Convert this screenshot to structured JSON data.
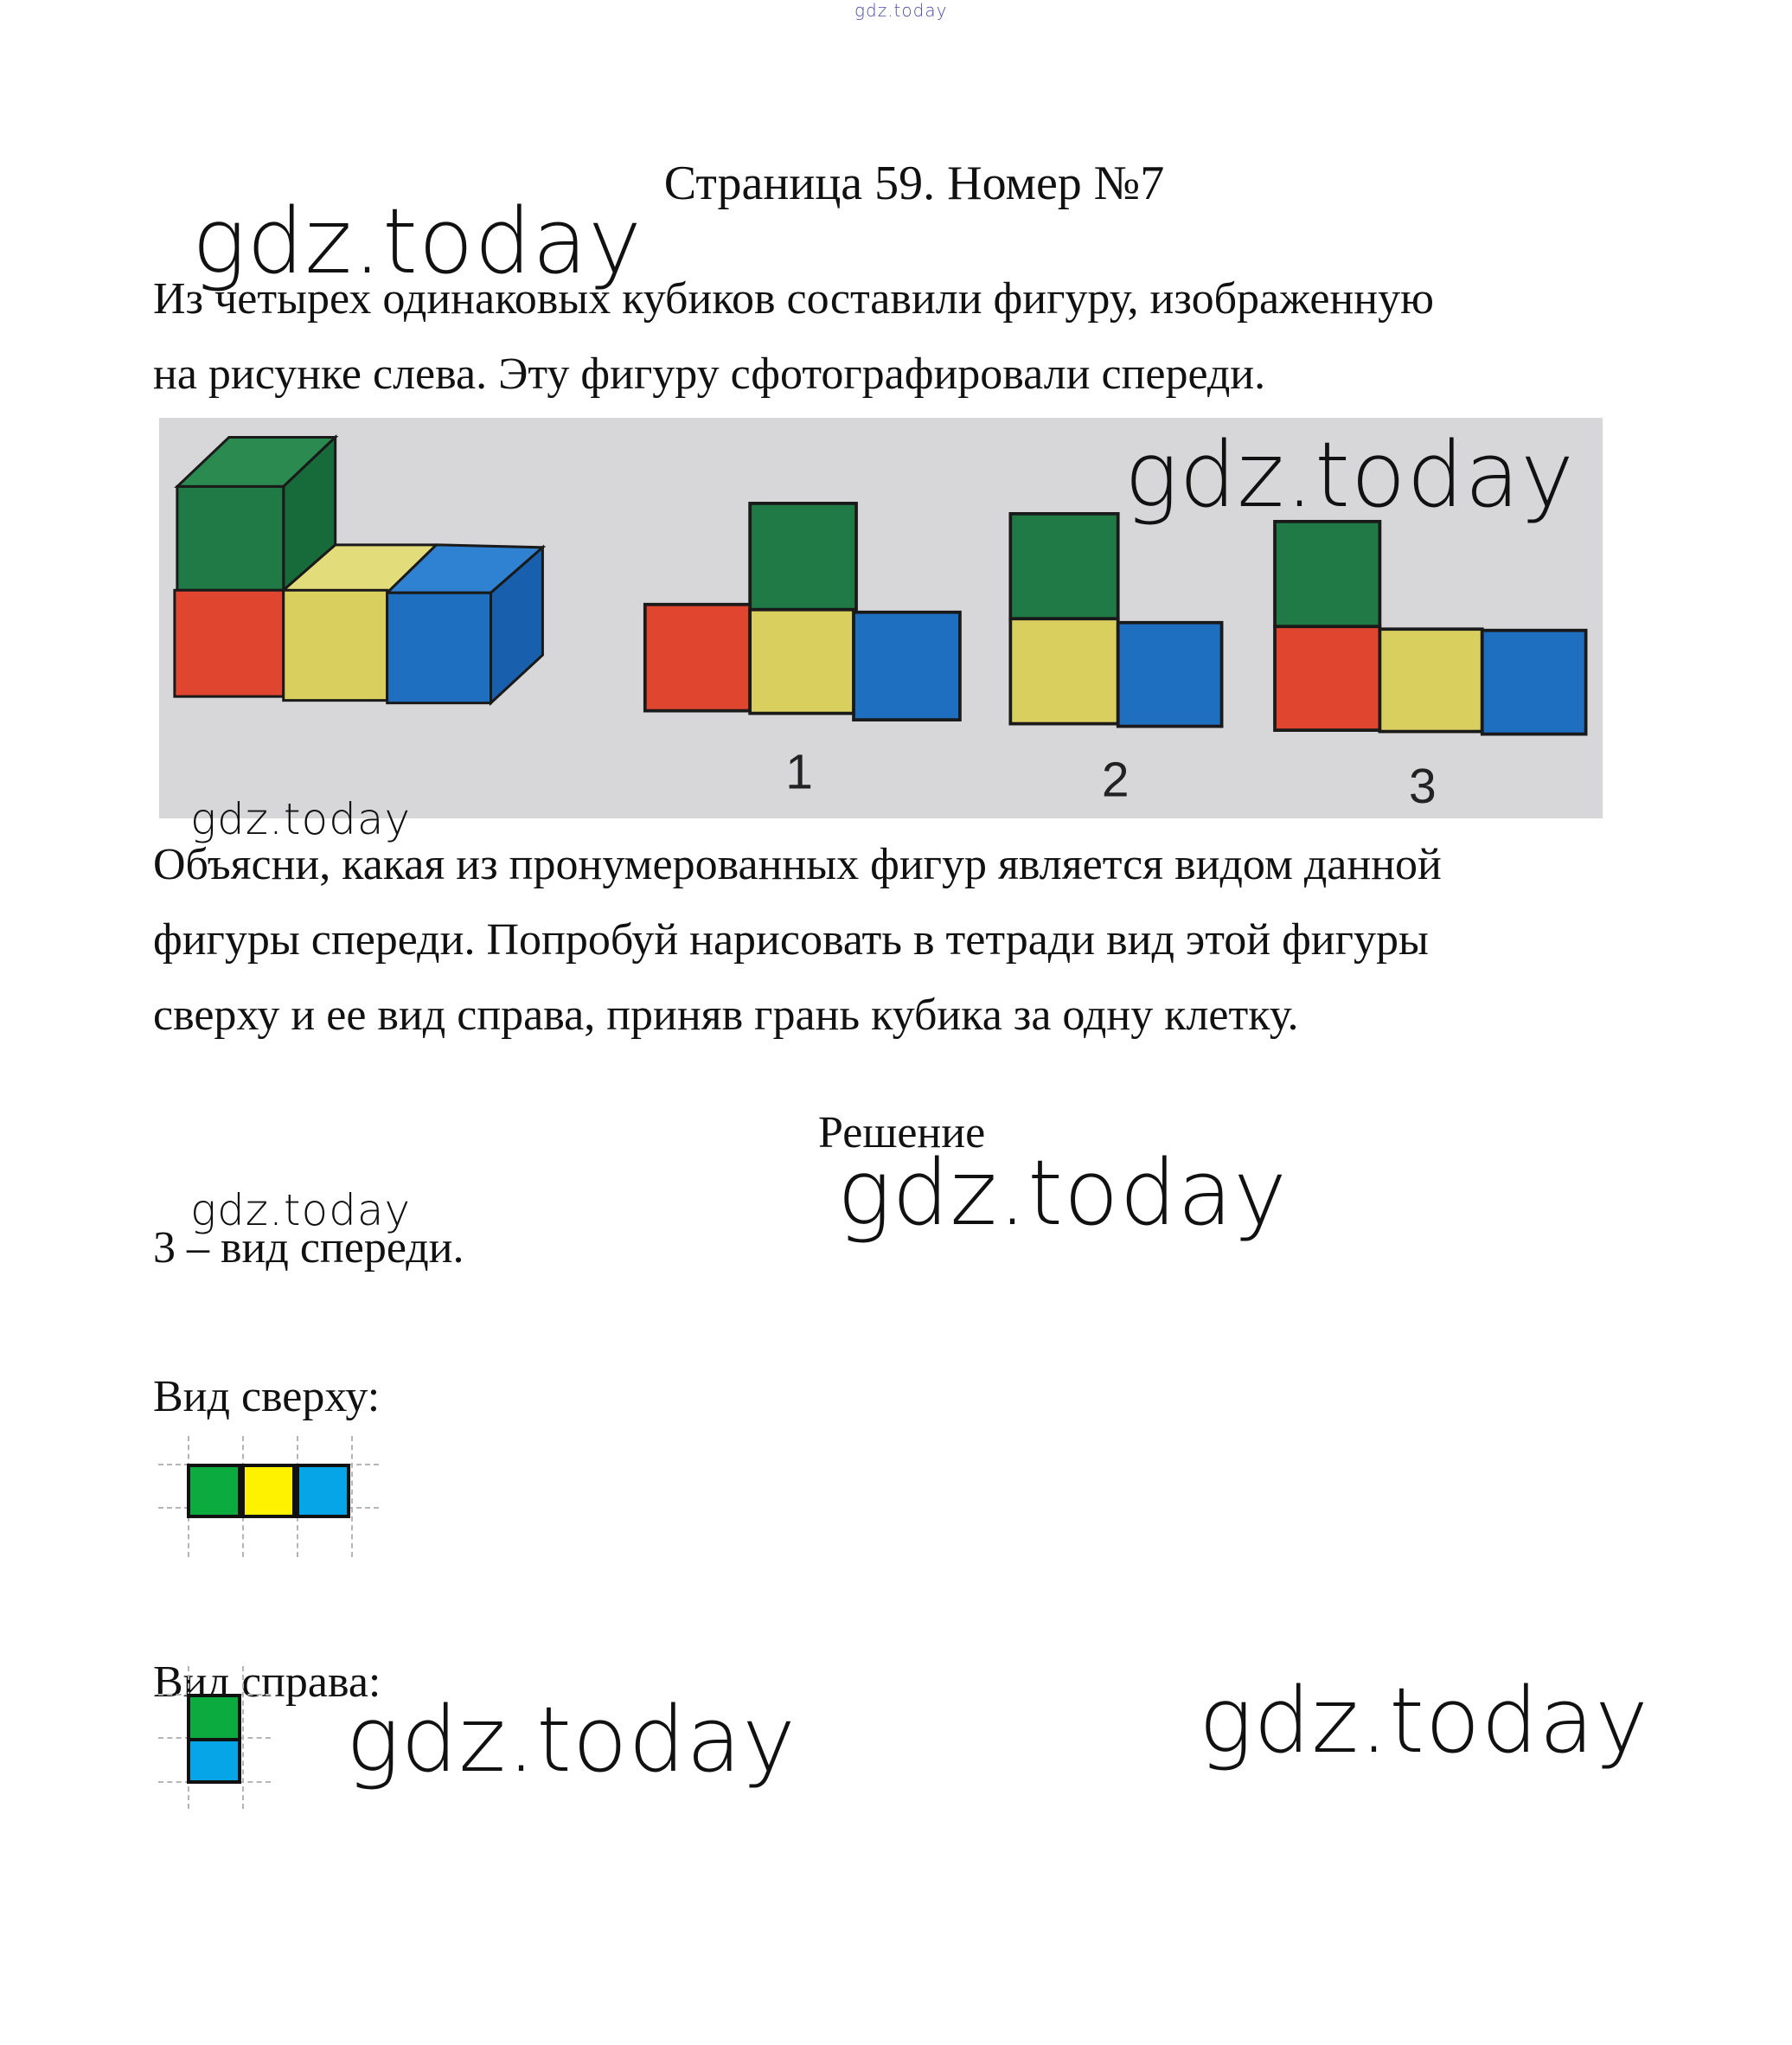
{
  "watermark": "gdz.today",
  "header": {
    "title": "Страница 59. Номер №7"
  },
  "task": {
    "paragraph1": [
      "Из четырех одинаковых кубиков составили фигуру, изображенную",
      "на рисунке слева. Эту фигуру сфотографировали спереди."
    ],
    "figure": {
      "labels": [
        "1",
        "2",
        "3"
      ],
      "colors": {
        "background": "#d7d7d9",
        "green": "#1f7a45",
        "red": "#e0452f",
        "yellow": "#d9cf5f",
        "blue": "#1f6fc0"
      }
    },
    "paragraph2": [
      "Объясни, какая из пронумерованных фигур является видом данной",
      "фигуры спереди. Попробуй нарисовать в тетради вид этой фигуры",
      "сверху и ее вид справа, приняв грань кубика за одну клетку."
    ]
  },
  "solution": {
    "heading": "Решение",
    "answer": "3 – вид спереди.",
    "top_view": {
      "label": "Вид сверху:",
      "cells": [
        "#0bab3f",
        "#fff200",
        "#05a5e8"
      ]
    },
    "right_view": {
      "label": "Вид справа:",
      "cells": [
        "#0bab3f",
        "#05a5e8"
      ]
    }
  }
}
